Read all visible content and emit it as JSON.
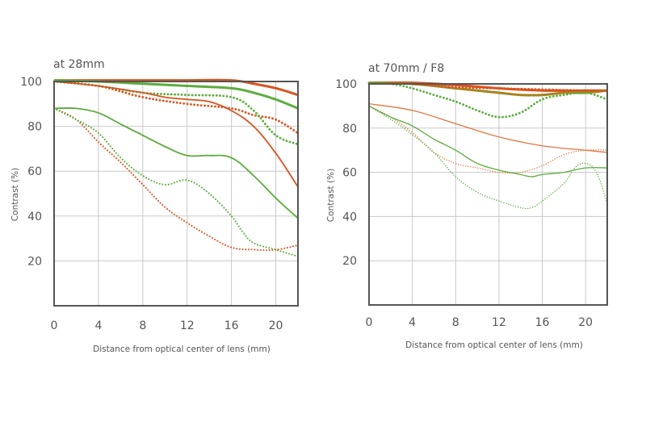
{
  "chart_data": [
    {
      "type": "line",
      "title": "at 28mm",
      "xlabel": "Distance from optical center of lens (mm)",
      "ylabel": "Contrast (%)",
      "xlim": [
        0,
        22
      ],
      "ylim": [
        0,
        100
      ],
      "xticks": [
        0,
        4,
        8,
        12,
        16,
        20
      ],
      "yticks": [
        20,
        40,
        60,
        80,
        100
      ],
      "grid": true,
      "series": [
        {
          "color": "#d9531e",
          "style": "solid-thick",
          "x": [
            0,
            4,
            8,
            12,
            16,
            18,
            20,
            22
          ],
          "y": [
            101,
            101,
            101,
            100.5,
            100.5,
            99,
            97,
            94
          ]
        },
        {
          "color": "#5aad3c",
          "style": "solid-thick",
          "x": [
            0,
            4,
            8,
            12,
            16,
            18,
            20,
            22
          ],
          "y": [
            101,
            100,
            99,
            98,
            97,
            95,
            92,
            88
          ]
        },
        {
          "color": "#d9531e",
          "style": "dotted-thick",
          "x": [
            0,
            4,
            8,
            12,
            16,
            18,
            20,
            22
          ],
          "y": [
            100,
            98,
            93,
            90,
            88,
            85,
            83,
            77
          ]
        },
        {
          "color": "#5aad3c",
          "style": "dotted-thick",
          "x": [
            0,
            4,
            8,
            12,
            16,
            18,
            20,
            22
          ],
          "y": [
            100,
            98,
            95,
            94,
            93,
            87,
            76,
            72
          ]
        },
        {
          "color": "#d9531e",
          "style": "solid",
          "x": [
            0,
            4,
            8,
            10,
            12,
            14,
            16,
            18,
            20,
            22
          ],
          "y": [
            100,
            98,
            95,
            93,
            92,
            91,
            87,
            80,
            68,
            53
          ]
        },
        {
          "color": "#5aad3c",
          "style": "solid",
          "x": [
            0,
            2,
            4,
            6,
            8,
            10,
            12,
            14,
            16,
            18,
            20,
            22
          ],
          "y": [
            88,
            88,
            86,
            81,
            76,
            71,
            67,
            67,
            66,
            58,
            48,
            39
          ]
        },
        {
          "color": "#d9531e",
          "style": "dotted",
          "x": [
            0,
            2,
            4,
            6,
            8,
            10,
            12,
            14,
            16,
            18,
            20,
            22
          ],
          "y": [
            88,
            83,
            73,
            64,
            54,
            44,
            37,
            31,
            26,
            25,
            25,
            27
          ]
        },
        {
          "color": "#5aad3c",
          "style": "dotted",
          "x": [
            0,
            2,
            4,
            6,
            8,
            10,
            12,
            14,
            16,
            17,
            18,
            20,
            22
          ],
          "y": [
            88,
            83,
            77,
            66,
            58,
            54,
            56,
            50,
            40,
            33,
            28,
            25,
            22
          ]
        }
      ]
    },
    {
      "type": "line",
      "title": "at 70mm / F8",
      "xlabel": "Distance from optical center of lens (mm)",
      "ylabel": "Contrast (%)",
      "xlim": [
        0,
        22
      ],
      "ylim": [
        0,
        100
      ],
      "xticks": [
        0,
        4,
        8,
        12,
        16,
        20
      ],
      "yticks": [
        20,
        40,
        60,
        80,
        100
      ],
      "grid": true,
      "series": [
        {
          "color": "#d9531e",
          "style": "solid-thick",
          "x": [
            0,
            4,
            8,
            12,
            16,
            20,
            22
          ],
          "y": [
            101,
            100.5,
            99.5,
            98,
            97,
            97,
            97
          ]
        },
        {
          "color": "#a8821e",
          "style": "solid-thick",
          "x": [
            0,
            4,
            8,
            12,
            14,
            16,
            18,
            20,
            22
          ],
          "y": [
            101,
            100,
            98,
            96,
            95,
            95,
            96,
            96,
            97
          ]
        },
        {
          "color": "#d9531e",
          "style": "dotted-thick",
          "x": [
            0,
            4,
            8,
            12,
            16,
            20,
            22
          ],
          "y": [
            101,
            100,
            98.5,
            98,
            97.5,
            97,
            97
          ]
        },
        {
          "color": "#5aad3c",
          "style": "dotted-thick",
          "x": [
            0,
            2,
            4,
            6,
            8,
            10,
            12,
            14,
            16,
            18,
            20,
            22
          ],
          "y": [
            101,
            100,
            98,
            95,
            92,
            88,
            85,
            87,
            93,
            95,
            96,
            93
          ]
        },
        {
          "color": "#e0773f",
          "style": "solid-thin",
          "x": [
            0,
            4,
            8,
            12,
            16,
            20,
            22
          ],
          "y": [
            91,
            88,
            82,
            76,
            72,
            70,
            69
          ]
        },
        {
          "color": "#e0773f",
          "style": "dotted-thin",
          "x": [
            0,
            2,
            4,
            6,
            8,
            10,
            12,
            14,
            16,
            18,
            20,
            22
          ],
          "y": [
            90,
            85,
            78,
            69,
            64,
            62,
            60,
            60,
            63,
            68,
            70,
            70
          ]
        },
        {
          "color": "#5aad3c",
          "style": "solid-thin",
          "x": [
            0,
            2,
            4,
            6,
            8,
            10,
            12,
            14,
            15,
            16,
            18,
            20,
            22
          ],
          "y": [
            90,
            85,
            81,
            75,
            70,
            64,
            61,
            59,
            58,
            59,
            60,
            62,
            62
          ]
        },
        {
          "color": "#5aad3c",
          "style": "dotted-thin",
          "x": [
            0,
            2,
            4,
            6,
            8,
            10,
            12,
            14,
            15,
            16,
            18,
            19,
            20,
            21,
            22
          ],
          "y": [
            90,
            84,
            77,
            69,
            58,
            51,
            47,
            44,
            44,
            47,
            55,
            62,
            64,
            60,
            46
          ]
        }
      ]
    }
  ]
}
